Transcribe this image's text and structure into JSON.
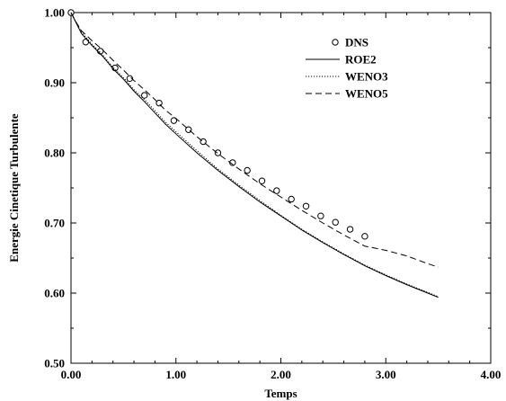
{
  "chart_data": {
    "type": "line",
    "xlabel": "Temps",
    "ylabel": "Energie Cinetique Turbulente",
    "xlim": [
      0,
      4
    ],
    "ylim": [
      0.5,
      1.0
    ],
    "xticks": [
      0,
      1,
      2,
      3,
      4
    ],
    "yticks": [
      0.5,
      0.6,
      0.7,
      0.8,
      0.9,
      1.0
    ],
    "xtick_labels": [
      "0.00",
      "1.00",
      "2.00",
      "3.00",
      "4.00"
    ],
    "ytick_labels": [
      "0.50",
      "0.60",
      "0.70",
      "0.80",
      "0.90",
      "1.00"
    ],
    "grid": false,
    "legend_position": "top-right",
    "series": [
      {
        "name": "DNS",
        "style": "circles",
        "x": [
          0.0,
          0.14,
          0.28,
          0.42,
          0.56,
          0.7,
          0.84,
          0.98,
          1.12,
          1.26,
          1.4,
          1.54,
          1.68,
          1.82,
          1.96,
          2.1,
          2.24,
          2.38,
          2.52,
          2.66,
          2.8
        ],
        "y": [
          1.0,
          0.958,
          0.945,
          0.921,
          0.906,
          0.882,
          0.871,
          0.846,
          0.833,
          0.816,
          0.8,
          0.786,
          0.775,
          0.76,
          0.746,
          0.734,
          0.724,
          0.71,
          0.701,
          0.691,
          0.681
        ]
      },
      {
        "name": "ROE2",
        "style": "solid",
        "x": [
          0.0,
          0.05,
          0.1,
          0.2,
          0.3,
          0.4,
          0.5,
          0.6,
          0.7,
          0.8,
          0.9,
          1.0,
          1.2,
          1.4,
          1.6,
          1.8,
          2.0,
          2.2,
          2.4,
          2.6,
          2.8,
          3.0,
          3.2,
          3.4,
          3.5
        ],
        "y": [
          1.0,
          0.985,
          0.97,
          0.953,
          0.938,
          0.92,
          0.905,
          0.888,
          0.873,
          0.857,
          0.841,
          0.827,
          0.8,
          0.775,
          0.752,
          0.73,
          0.71,
          0.69,
          0.672,
          0.655,
          0.639,
          0.625,
          0.612,
          0.6,
          0.594
        ]
      },
      {
        "name": "WENO3",
        "style": "dotted",
        "x": [
          0.0,
          0.05,
          0.1,
          0.2,
          0.3,
          0.4,
          0.5,
          0.6,
          0.7,
          0.8,
          0.9,
          1.0,
          1.2,
          1.4,
          1.6,
          1.8,
          2.0,
          2.2,
          2.4,
          2.6,
          2.8,
          3.0,
          3.2,
          3.4,
          3.5
        ],
        "y": [
          1.0,
          0.986,
          0.972,
          0.955,
          0.94,
          0.922,
          0.907,
          0.89,
          0.876,
          0.86,
          0.844,
          0.83,
          0.803,
          0.777,
          0.754,
          0.732,
          0.711,
          0.691,
          0.673,
          0.656,
          0.64,
          0.626,
          0.613,
          0.601,
          0.595
        ]
      },
      {
        "name": "WENO5",
        "style": "dashed",
        "x": [
          0.0,
          0.05,
          0.1,
          0.2,
          0.3,
          0.4,
          0.5,
          0.6,
          0.7,
          0.8,
          0.9,
          1.0,
          1.2,
          1.4,
          1.6,
          1.8,
          2.0,
          2.2,
          2.4,
          2.6,
          2.8,
          3.0,
          3.2,
          3.4,
          3.5
        ],
        "y": [
          1.0,
          0.986,
          0.974,
          0.96,
          0.947,
          0.932,
          0.918,
          0.903,
          0.89,
          0.876,
          0.861,
          0.849,
          0.823,
          0.799,
          0.777,
          0.756,
          0.737,
          0.718,
          0.7,
          0.683,
          0.667,
          0.661,
          0.653,
          0.642,
          0.637
        ]
      }
    ]
  }
}
